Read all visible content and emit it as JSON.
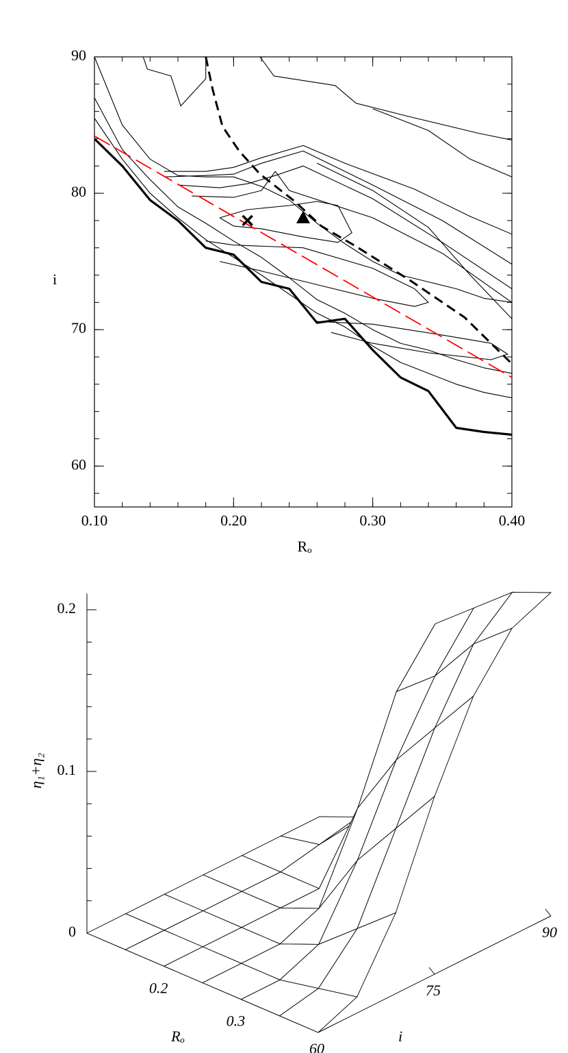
{
  "chart_data": [
    {
      "type": "contour",
      "x_label": "Rₒ",
      "y_label": "i",
      "xlim": [
        0.1,
        0.4
      ],
      "ylim": [
        57,
        90
      ],
      "xticks": [
        {
          "value": 0.1,
          "label": "0.10"
        },
        {
          "value": 0.2,
          "label": "0.20"
        },
        {
          "value": 0.3,
          "label": "0.30"
        },
        {
          "value": 0.4,
          "label": "0.40"
        }
      ],
      "yticks": [
        60,
        70,
        80,
        90
      ],
      "xminor": 0.02,
      "yminor": 2,
      "series": [
        {
          "x": [
            0.19,
            0.21,
            0.24,
            0.26,
            0.275,
            0.285,
            0.275,
            0.25,
            0.22,
            0.2,
            0.19
          ],
          "values": [
            78.2,
            78.8,
            79.1,
            79.4,
            79.1,
            77.1,
            76.4,
            76.8,
            77.4,
            77.6,
            78.2
          ],
          "color": "#000000",
          "style": "solid"
        },
        {
          "x": [
            0.18,
            0.2,
            0.25,
            0.3,
            0.33,
            0.34,
            0.33,
            0.3,
            0.26,
            0.22,
            0.19
          ],
          "values": [
            76.5,
            76.2,
            76.0,
            74.5,
            73.0,
            72.0,
            71.7,
            72.3,
            73.3,
            74.3,
            75.0
          ],
          "color": "#000000",
          "style": "solid"
        },
        {
          "x": [
            0.26,
            0.3,
            0.35,
            0.385,
            0.397,
            0.385,
            0.34,
            0.3,
            0.27
          ],
          "values": [
            70.6,
            70.4,
            69.6,
            69.0,
            68.2,
            67.8,
            68.3,
            69.0,
            69.8
          ],
          "color": "#000000",
          "style": "solid"
        },
        {
          "x": [
            0.15,
            0.18,
            0.2,
            0.22,
            0.25,
            0.28,
            0.33,
            0.37,
            0.4
          ],
          "values": [
            81.6,
            81.6,
            81.9,
            82.6,
            83.5,
            82.2,
            80.3,
            78.3,
            77.0
          ],
          "color": "#000000",
          "style": "solid"
        },
        {
          "x": [
            0.15,
            0.18,
            0.2,
            0.22,
            0.25,
            0.3,
            0.35,
            0.4
          ],
          "values": [
            81.2,
            81.3,
            81.4,
            82.2,
            83.1,
            80.6,
            78.0,
            74.8
          ],
          "color": "#000000",
          "style": "solid"
        },
        {
          "x": [
            0.16,
            0.19,
            0.21,
            0.23,
            0.25,
            0.3,
            0.35,
            0.4
          ],
          "values": [
            80.6,
            80.4,
            80.7,
            81.3,
            82.0,
            79.6,
            76.4,
            73.0
          ],
          "color": "#000000",
          "style": "solid"
        },
        {
          "x": [
            0.17,
            0.2,
            0.22,
            0.23,
            0.24,
            0.3,
            0.35,
            0.4
          ],
          "values": [
            79.8,
            79.7,
            80.2,
            81.6,
            80.2,
            78.2,
            75.6,
            72.0
          ],
          "color": "#000000",
          "style": "solid"
        },
        {
          "x": [
            0.26,
            0.3,
            0.34,
            0.37,
            0.4
          ],
          "values": [
            82.2,
            80.2,
            77.5,
            74.0,
            70.8
          ],
          "color": "#000000",
          "style": "solid"
        },
        {
          "x": [
            0.219,
            0.229,
            0.273,
            0.288,
            0.327,
            0.376,
            0.4
          ],
          "values": [
            90,
            88.6,
            87.9,
            86.6,
            85.6,
            84.4,
            83.9
          ],
          "color": "#000000",
          "style": "solid"
        },
        {
          "x": [
            0.135,
            0.138,
            0.155,
            0.162,
            0.18,
            0.18
          ],
          "values": [
            90,
            89.1,
            88.6,
            86.4,
            88.4,
            90
          ],
          "color": "#000000",
          "style": "solid"
        },
        {
          "x": [
            0.3,
            0.34,
            0.37,
            0.4
          ],
          "values": [
            86.2,
            84.6,
            82.5,
            81.2
          ],
          "color": "#000000",
          "style": "solid"
        },
        {
          "x": [
            0.1,
            0.12,
            0.14,
            0.16,
            0.18,
            0.2,
            0.22,
            0.24,
            0.26,
            0.28,
            0.3,
            0.32,
            0.34,
            0.36,
            0.38,
            0.4
          ],
          "values": [
            90,
            85,
            82.5,
            81.3,
            81.2,
            81.2,
            80.5,
            79.5,
            77.8,
            76.3,
            75,
            74,
            73.5,
            73,
            72.3,
            72
          ],
          "color": "#000000",
          "style": "solid"
        },
        {
          "x": [
            0.1,
            0.12,
            0.14,
            0.16,
            0.18,
            0.2,
            0.22,
            0.24,
            0.26,
            0.28,
            0.3,
            0.32,
            0.34,
            0.36,
            0.38,
            0.4
          ],
          "values": [
            87,
            83.2,
            81,
            79,
            77.8,
            76.5,
            75.3,
            73.8,
            72.2,
            71.2,
            70,
            69,
            68.5,
            67.8,
            67.2,
            66.8
          ],
          "color": "#000000",
          "style": "solid"
        },
        {
          "x": [
            0.1,
            0.12,
            0.14,
            0.16,
            0.18,
            0.2,
            0.22,
            0.24,
            0.26,
            0.28,
            0.3,
            0.32,
            0.34,
            0.36,
            0.38,
            0.4
          ],
          "values": [
            85.5,
            82.5,
            80,
            78.2,
            76.6,
            75.3,
            74,
            72.6,
            71.2,
            70.2,
            68.8,
            67.6,
            66.8,
            66,
            65.4,
            65
          ],
          "color": "#000000",
          "style": "solid"
        },
        {
          "x": [
            0.1,
            0.12,
            0.14,
            0.16,
            0.18,
            0.2,
            0.22,
            0.24,
            0.26,
            0.28,
            0.3,
            0.32,
            0.34,
            0.36,
            0.38,
            0.4
          ],
          "values": [
            84,
            82,
            79.5,
            78,
            76,
            75.5,
            73.5,
            73,
            70.5,
            70.8,
            68.5,
            66.5,
            65.5,
            62.8,
            62.5,
            62.3
          ],
          "color": "#000000",
          "style": "bold"
        },
        {
          "x": [
            0.1,
            0.4
          ],
          "values": [
            84.2,
            66.5
          ],
          "color": "#ff0000",
          "style": "long-dashed"
        },
        {
          "x": [
            0.18,
            0.185,
            0.192,
            0.204,
            0.219,
            0.244,
            0.263,
            0.288,
            0.327,
            0.366,
            0.4
          ],
          "values": [
            90,
            87.6,
            84.9,
            83.1,
            81.4,
            79.4,
            77.6,
            76.1,
            73.6,
            70.9,
            67.5
          ],
          "color": "#000000",
          "style": "dashed"
        }
      ],
      "points": [
        {
          "x": 0.21,
          "y": 78,
          "marker": "cross"
        },
        {
          "x": 0.25,
          "y": 78.2,
          "marker": "triangle"
        }
      ]
    },
    {
      "type": "surface",
      "x_label": "Rₒ",
      "y_label": "i",
      "z_label": "η₁+η₂",
      "xlim": [
        0.1,
        0.4
      ],
      "ylim": [
        60,
        90
      ],
      "zlim": [
        0,
        0.21
      ],
      "xticks": [
        0.2,
        0.3
      ],
      "yticks": [
        60,
        75,
        90
      ],
      "zticks": [
        0,
        0.1,
        0.2
      ],
      "zminor": 0.02,
      "x": [
        0.1,
        0.15,
        0.2,
        0.25,
        0.3,
        0.35,
        0.4
      ],
      "y": [
        60,
        65,
        70,
        75,
        80,
        85,
        90
      ],
      "z": [
        [
          0,
          0,
          0,
          0,
          0,
          0,
          0
        ],
        [
          0,
          0,
          0,
          0,
          0,
          0.005,
          0.01
        ],
        [
          0,
          0,
          0,
          0,
          0,
          0.03,
          0.05
        ],
        [
          0,
          0,
          0,
          0.01,
          0.06,
          0.12,
          0.15
        ],
        [
          0,
          0,
          0.01,
          0.05,
          0.1,
          0.14,
          0.17
        ],
        [
          0,
          0.005,
          0.03,
          0.08,
          0.13,
          0.17,
          0.19
        ],
        [
          0,
          0.01,
          0.05,
          0.11,
          0.16,
          0.19,
          0.2
        ]
      ]
    }
  ]
}
